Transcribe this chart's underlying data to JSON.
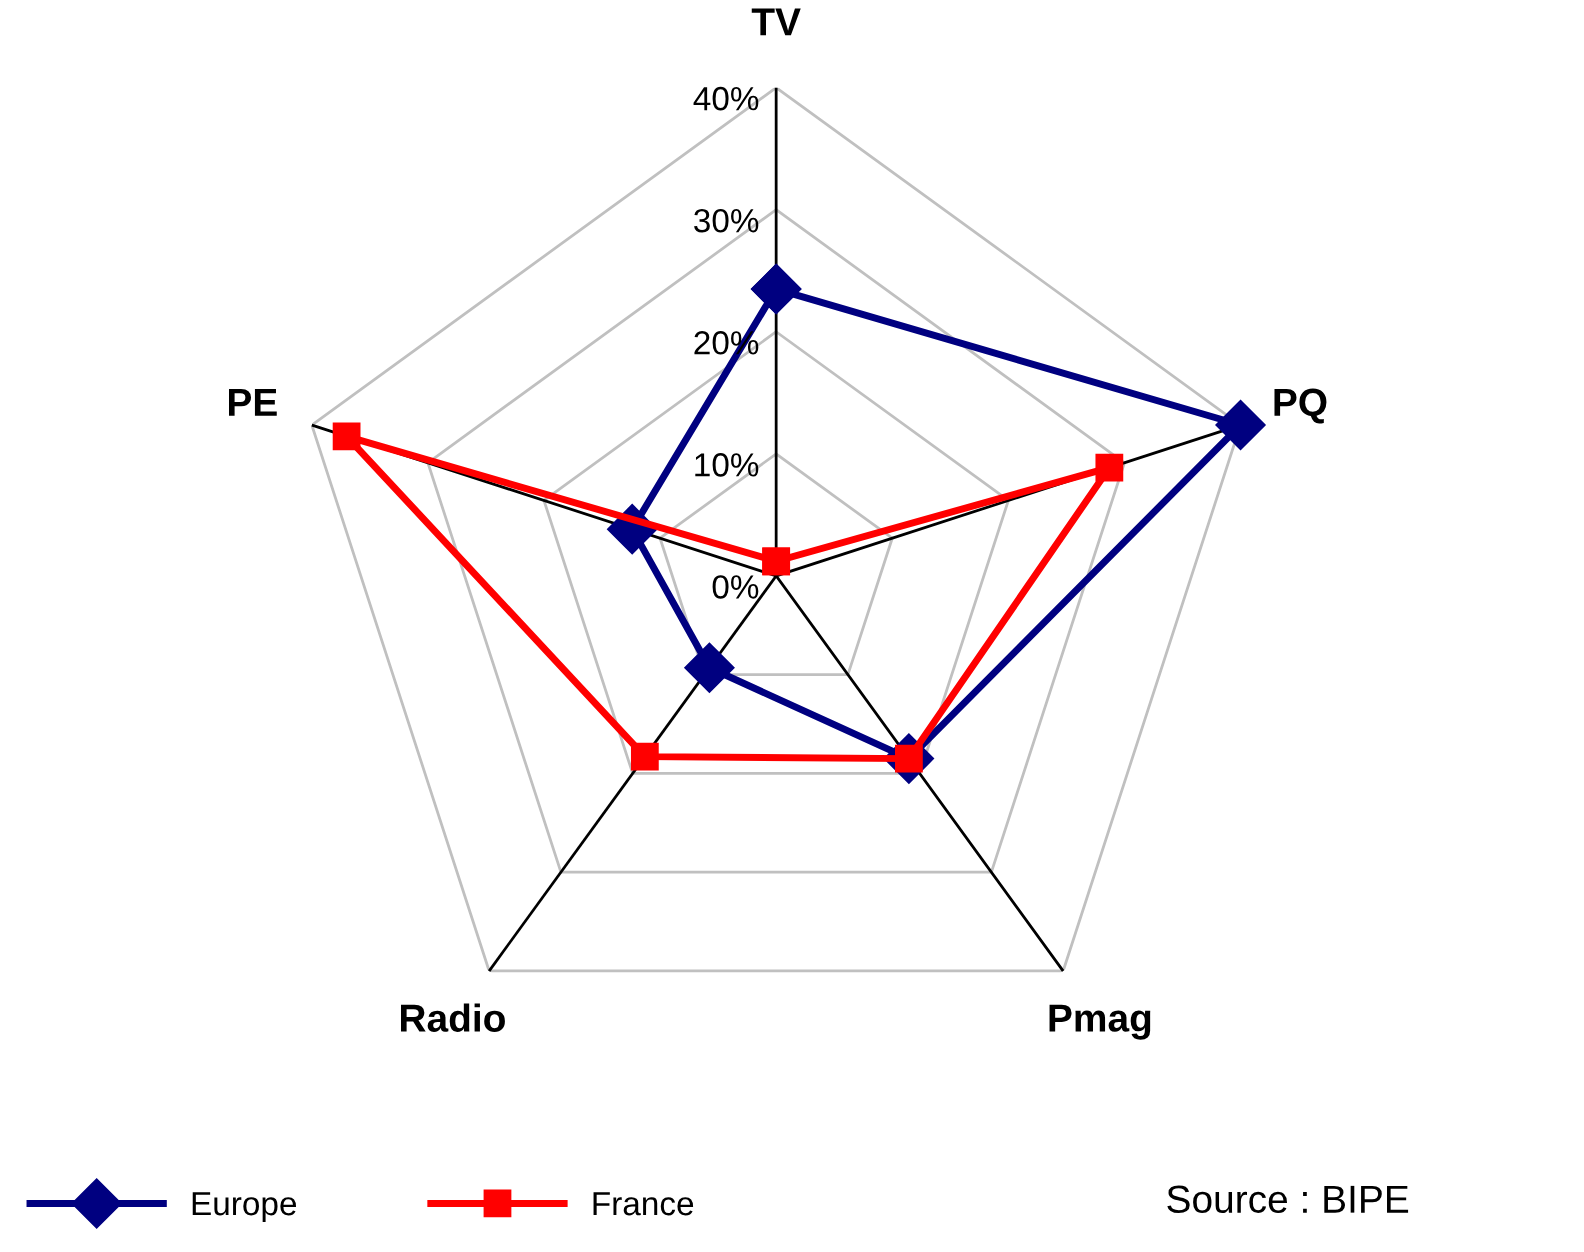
{
  "chart_data": {
    "type": "radar",
    "categories": [
      "TV",
      "PQ",
      "Pmag",
      "Radio",
      "PE"
    ],
    "series": [
      {
        "name": "Europe",
        "color": "#000080",
        "marker": "diamond",
        "values": [
          23.5,
          40,
          18.5,
          9.3,
          12.4
        ]
      },
      {
        "name": "France",
        "color": "#ff0000",
        "marker": "square",
        "values": [
          1.2,
          28.7,
          18.5,
          18.3,
          37
        ]
      }
    ],
    "ylim": [
      0,
      40
    ],
    "yticks": [
      {
        "value": 0,
        "label": "0%"
      },
      {
        "value": 10,
        "label": "10%"
      },
      {
        "value": 20,
        "label": "20%"
      },
      {
        "value": 30,
        "label": "30%"
      },
      {
        "value": 40,
        "label": "40%"
      }
    ],
    "grid": true,
    "legend": "bottom left",
    "annotations": [
      "Source : BIPE"
    ]
  }
}
